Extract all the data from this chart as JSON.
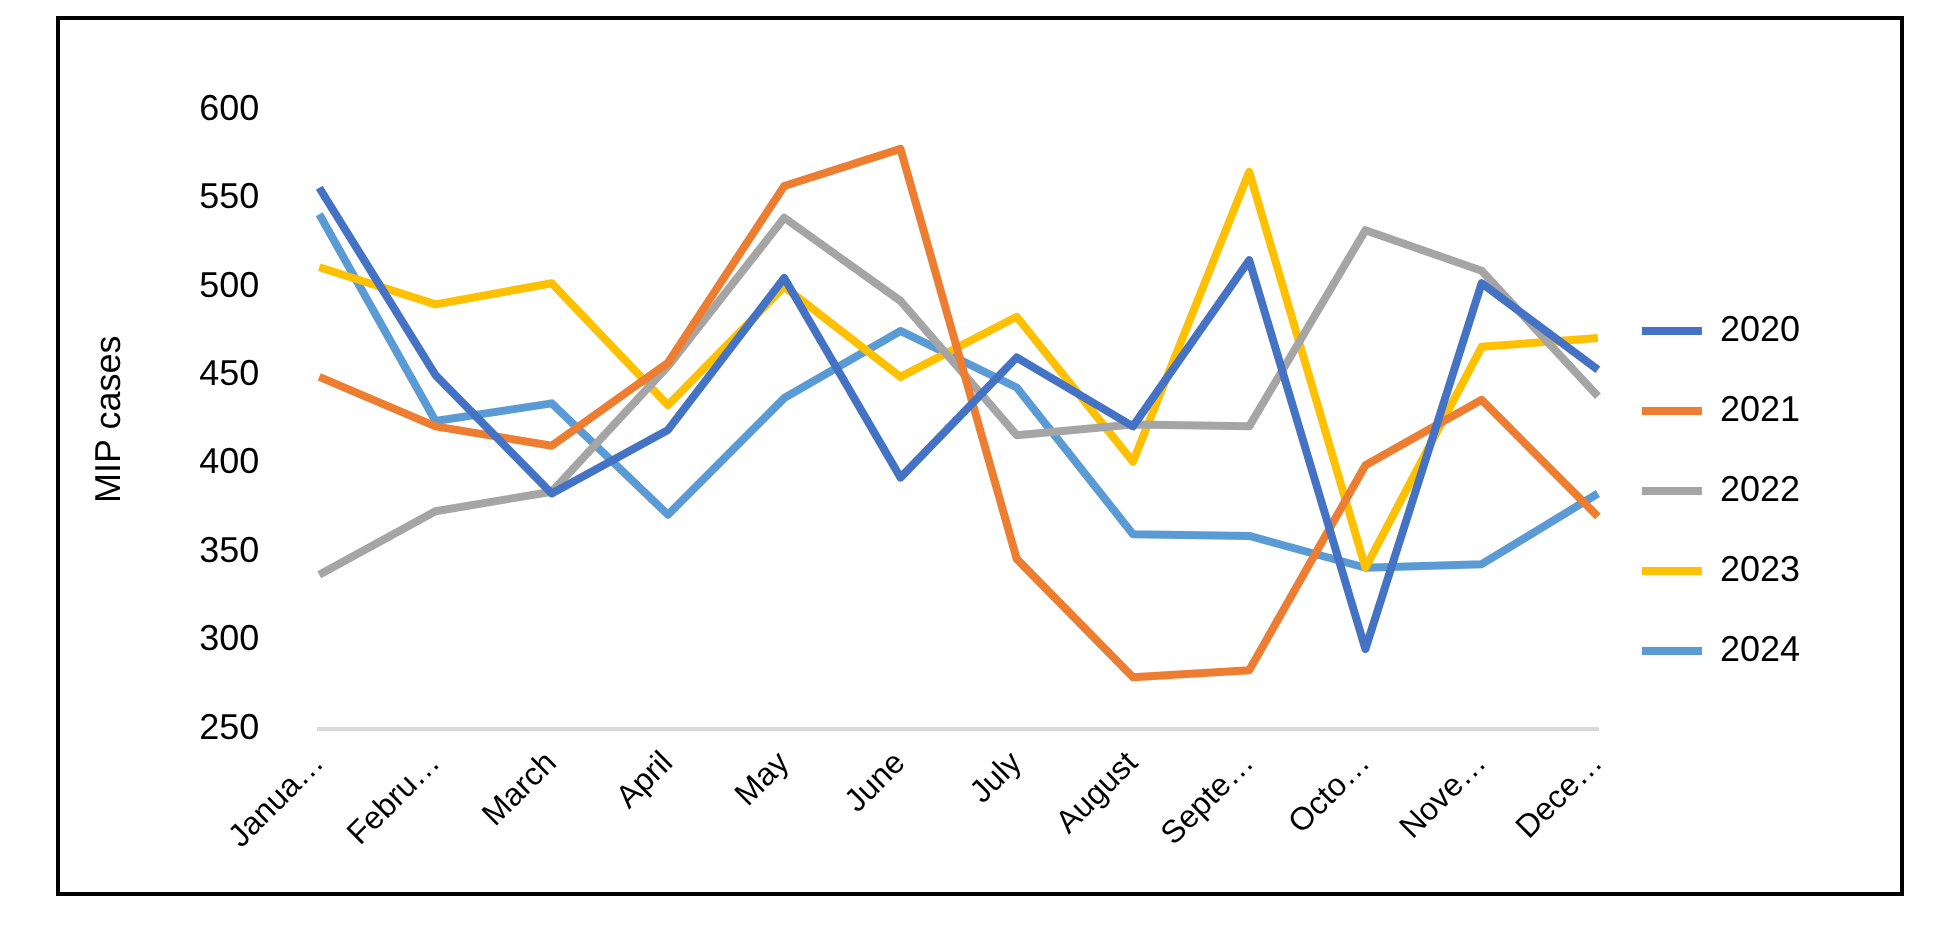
{
  "chart_data": {
    "type": "line",
    "ylabel": "MIP cases",
    "categories": [
      "Janua…",
      "Febru…",
      "March",
      "April",
      "May",
      "June",
      "July",
      "August",
      "Septe…",
      "Octo…",
      "Nove…",
      "Dece…"
    ],
    "series": [
      {
        "name": "2020",
        "color": "#4472c4",
        "values": [
          556,
          450,
          383,
          419,
          505,
          392,
          460,
          421,
          515,
          295,
          502,
          453
        ]
      },
      {
        "name": "2021",
        "color": "#ed7d31",
        "values": [
          449,
          421,
          410,
          457,
          557,
          578,
          346,
          279,
          283,
          399,
          436,
          370
        ]
      },
      {
        "name": "2022",
        "color": "#a5a5a5",
        "values": [
          337,
          373,
          384,
          455,
          539,
          492,
          416,
          422,
          421,
          532,
          509,
          438
        ]
      },
      {
        "name": "2023",
        "color": "#ffc000",
        "values": [
          511,
          490,
          502,
          433,
          500,
          449,
          483,
          401,
          565,
          341,
          466,
          471
        ]
      },
      {
        "name": "2024",
        "color": "#5b9bd5",
        "values": [
          541,
          424,
          434,
          371,
          437,
          475,
          443,
          360,
          359,
          341,
          343,
          383
        ]
      }
    ],
    "ylim": [
      250,
      600
    ],
    "yticks": [
      250,
      300,
      350,
      400,
      450,
      500,
      550,
      600
    ],
    "grid": false,
    "legend": "right",
    "marker": "none",
    "line_style": "solid"
  }
}
